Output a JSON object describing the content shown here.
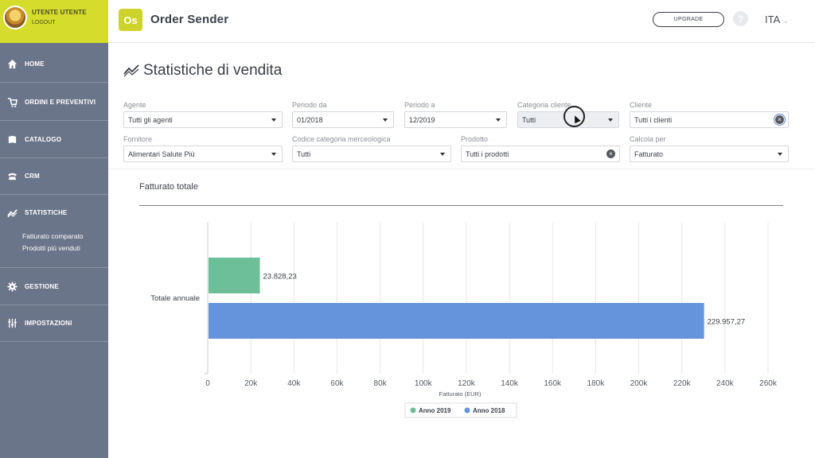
{
  "user": {
    "name": "UTENTE UTENTE",
    "logout": "LOGOUT"
  },
  "app": {
    "logo_text": "Os",
    "title": "Order Sender"
  },
  "header": {
    "upgrade_label": "UPGRADE",
    "help_glyph": "?",
    "language": "ITA"
  },
  "nav": {
    "items": [
      {
        "label": "HOME",
        "icon": "home-icon"
      },
      {
        "label": "ORDINI E PREVENTIVI",
        "icon": "cart-icon"
      },
      {
        "label": "CATALOGO",
        "icon": "catalog-icon"
      },
      {
        "label": "CRM",
        "icon": "phone-icon"
      },
      {
        "label": "STATISTICHE",
        "icon": "trend-icon"
      },
      {
        "label": "GESTIONE",
        "icon": "gear-icon"
      },
      {
        "label": "IMPOSTAZIONI",
        "icon": "sliders-icon"
      }
    ],
    "sub_items": [
      "Fatturato comparato",
      "Prodotti più venduti"
    ]
  },
  "page": {
    "title": "Statistiche di vendita"
  },
  "filters": {
    "agente": {
      "label": "Agente",
      "value": "Tutti gli agenti"
    },
    "periodo_da": {
      "label": "Periodo da",
      "value": "01/2018"
    },
    "periodo_a": {
      "label": "Periodo a",
      "value": "12/2019"
    },
    "categoria_cliente": {
      "label": "Categoria cliente",
      "value": "Tutti"
    },
    "cliente": {
      "label": "Cliente",
      "value": "Tutti i clienti"
    },
    "fornitore": {
      "label": "Fornitore",
      "value": "Alimentari Salute Più"
    },
    "codice_categoria": {
      "label": "Codice categoria merceologica",
      "value": "Tutti"
    },
    "prodotto": {
      "label": "Prodotto",
      "value": "Tutti i prodotti"
    },
    "calcola_per": {
      "label": "Calcola per",
      "value": "Fatturato"
    }
  },
  "chart_data": {
    "type": "bar",
    "orientation": "horizontal",
    "title": "Fatturato totale",
    "categories": [
      "Totale annuale"
    ],
    "series": [
      {
        "name": "Anno 2019",
        "values": [
          23828.23
        ],
        "label": "23.828,23",
        "color": "#6cbf98"
      },
      {
        "name": "Anno 2018",
        "values": [
          229957.27
        ],
        "label": "229.957,27",
        "color": "#6694dc"
      }
    ],
    "xlabel": "Fatturato (EUR)",
    "xlim": [
      0,
      260000
    ],
    "x_ticks": [
      0,
      20000,
      40000,
      60000,
      80000,
      100000,
      120000,
      140000,
      160000,
      180000,
      200000,
      220000,
      240000,
      260000
    ],
    "x_tick_labels": [
      "0",
      "20k",
      "40k",
      "60k",
      "80k",
      "100k",
      "120k",
      "140k",
      "160k",
      "180k",
      "200k",
      "220k",
      "240k",
      "260k"
    ],
    "grid": true,
    "legend": "bottom-center"
  }
}
